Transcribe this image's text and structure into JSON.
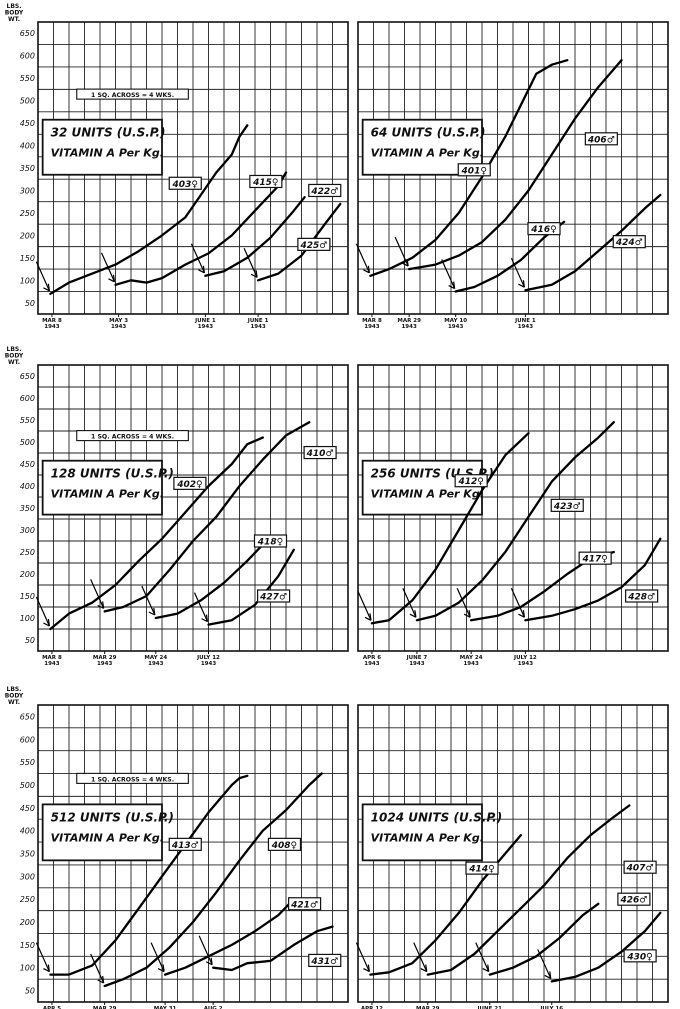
{
  "figure": {
    "y_axis_unit_lines": [
      "LBS.",
      "BODY",
      "WT."
    ],
    "scale_note": "1 SQ. ACROSS = 4 WKS."
  },
  "chart_data": [
    {
      "type": "line",
      "box_lines": [
        "32 UNITS (U.S.P.)",
        "VITAMIN A Per Kg."
      ],
      "ylim": [
        25,
        675
      ],
      "yticks": [
        50,
        100,
        150,
        200,
        250,
        300,
        350,
        400,
        450,
        500,
        550,
        600,
        650
      ],
      "xlim": [
        0,
        20
      ],
      "date_ticks": [
        {
          "x": 0.9,
          "label": [
            "MAR 8",
            "1943"
          ]
        },
        {
          "x": 5.2,
          "label": [
            "MAY 3",
            "1943"
          ]
        },
        {
          "x": 10.8,
          "label": [
            "JUNE 1",
            "1943"
          ]
        },
        {
          "x": 14.2,
          "label": [
            "JUNE 1",
            "1943"
          ]
        }
      ],
      "scale_note": "1 SQ. ACROSS = 4 WKS.",
      "series": [
        {
          "name": "403♀",
          "label_at": [
            9.5,
            316
          ],
          "x": [
            0.8,
            2,
            3.5,
            5,
            6.5,
            8,
            9.5,
            10.5,
            11.5,
            12.5,
            13,
            13.5
          ],
          "y": [
            70,
            95,
            115,
            135,
            165,
            200,
            240,
            290,
            340,
            380,
            420,
            445
          ]
        },
        {
          "name": "415♀",
          "label_at": [
            14.7,
            320
          ],
          "x": [
            5,
            6,
            7,
            8,
            9.5,
            11,
            12.5,
            14,
            15.5,
            16
          ],
          "y": [
            90,
            100,
            95,
            105,
            135,
            160,
            200,
            255,
            310,
            340
          ]
        },
        {
          "name": "422♂",
          "label_at": [
            18.5,
            300
          ],
          "x": [
            10.8,
            12,
            13.5,
            15,
            16.5,
            17.2
          ],
          "y": [
            110,
            120,
            150,
            195,
            255,
            285
          ]
        },
        {
          "name": "425♂",
          "label_at": [
            17.8,
            180
          ],
          "x": [
            14.2,
            15.5,
            17,
            18.5,
            19.5
          ],
          "y": [
            100,
            115,
            155,
            225,
            270
          ]
        }
      ]
    },
    {
      "type": "line",
      "box_lines": [
        "64 UNITS (U.S.P.)",
        "VITAMIN A Per Kg."
      ],
      "ylim": [
        25,
        675
      ],
      "yticks": [
        50,
        100,
        150,
        200,
        250,
        300,
        350,
        400,
        450,
        500,
        550,
        600,
        650
      ],
      "xlim": [
        0,
        20
      ],
      "date_ticks": [
        {
          "x": 0.9,
          "label": [
            "MAR 8",
            "1943"
          ]
        },
        {
          "x": 3.3,
          "label": [
            "MAR 29",
            "1943"
          ]
        },
        {
          "x": 6.3,
          "label": [
            "MAY 10",
            "1943"
          ]
        },
        {
          "x": 10.8,
          "label": [
            "JUNE 1",
            "1943"
          ]
        }
      ],
      "scale_note": "",
      "series": [
        {
          "name": "401♀",
          "label_at": [
            7.5,
            346
          ],
          "x": [
            0.8,
            2,
            3.5,
            5,
            6.5,
            8,
            9.5,
            10.5,
            11.5,
            12.5,
            13.5
          ],
          "y": [
            110,
            125,
            150,
            190,
            250,
            330,
            420,
            490,
            560,
            580,
            590
          ]
        },
        {
          "name": "406♂",
          "label_at": [
            15.7,
            415
          ],
          "x": [
            3.3,
            5,
            6.5,
            8,
            9.5,
            11,
            12.5,
            14,
            15.5,
            17
          ],
          "y": [
            125,
            135,
            155,
            185,
            235,
            300,
            380,
            460,
            530,
            590
          ]
        },
        {
          "name": "416♀",
          "label_at": [
            12,
            215
          ],
          "x": [
            6.3,
            7.5,
            9,
            10.5,
            12,
            13.3
          ],
          "y": [
            75,
            85,
            110,
            145,
            195,
            230
          ]
        },
        {
          "name": "424♂",
          "label_at": [
            17.5,
            186
          ],
          "x": [
            10.8,
            12.5,
            14,
            15.5,
            17,
            18.5,
            19.5
          ],
          "y": [
            78,
            90,
            120,
            165,
            210,
            260,
            290
          ]
        }
      ]
    },
    {
      "type": "line",
      "box_lines": [
        "128 UNITS (U.S.P.)",
        "VITAMIN A Per Kg."
      ],
      "ylim": [
        25,
        675
      ],
      "yticks": [
        50,
        100,
        150,
        200,
        250,
        300,
        350,
        400,
        450,
        500,
        550,
        600,
        650
      ],
      "xlim": [
        0,
        20
      ],
      "date_ticks": [
        {
          "x": 0.9,
          "label": [
            "MAR 8",
            "1943"
          ]
        },
        {
          "x": 4.3,
          "label": [
            "MAR 29",
            "1943"
          ]
        },
        {
          "x": 7.6,
          "label": [
            "MAY 24",
            "1943"
          ]
        },
        {
          "x": 11,
          "label": [
            "JULY 12",
            "1943"
          ]
        }
      ],
      "scale_note": "1 SQ. ACROSS = 4 WKS.",
      "series": [
        {
          "name": "410♂",
          "label_at": [
            18.2,
            476
          ],
          "x": [
            0.8,
            2,
            3.5,
            5,
            6.5,
            8,
            9.5,
            11,
            12.5,
            13.5,
            14.5
          ],
          "y": [
            75,
            110,
            135,
            175,
            230,
            280,
            340,
            400,
            450,
            495,
            510
          ]
        },
        {
          "name": "402♀",
          "label_at": [
            9.8,
            406
          ],
          "x": [
            4.3,
            5.5,
            7,
            8.5,
            10,
            11.5,
            13,
            14.5,
            16,
            17,
            17.5
          ],
          "y": [
            115,
            125,
            150,
            210,
            275,
            330,
            400,
            460,
            515,
            535,
            545
          ]
        },
        {
          "name": "418♀",
          "label_at": [
            15,
            275
          ],
          "x": [
            7.6,
            9,
            10.5,
            12,
            13.5,
            15
          ],
          "y": [
            100,
            110,
            140,
            180,
            230,
            285
          ]
        },
        {
          "name": "427♂",
          "label_at": [
            15.2,
            150
          ],
          "x": [
            11,
            12.5,
            14,
            15.5,
            16.5
          ],
          "y": [
            85,
            95,
            130,
            195,
            255
          ]
        }
      ]
    },
    {
      "type": "line",
      "box_lines": [
        "256 UNITS (U.S.P.)",
        "VITAMIN A Per Kg."
      ],
      "ylim": [
        25,
        675
      ],
      "yticks": [
        50,
        100,
        150,
        200,
        250,
        300,
        350,
        400,
        450,
        500,
        550,
        600,
        650
      ],
      "xlim": [
        0,
        20
      ],
      "date_ticks": [
        {
          "x": 0.9,
          "label": [
            "APR 6",
            "1943"
          ]
        },
        {
          "x": 3.8,
          "label": [
            "JUNE 7",
            "1943"
          ]
        },
        {
          "x": 7.3,
          "label": [
            "MAY 24",
            "1943"
          ]
        },
        {
          "x": 10.8,
          "label": [
            "JULY 12",
            "1943"
          ]
        }
      ],
      "scale_note": "",
      "series": [
        {
          "name": "412♀",
          "label_at": [
            7.3,
            412
          ],
          "x": [
            0.9,
            2,
            3.5,
            5,
            6.5,
            8,
            9.5,
            11
          ],
          "y": [
            88,
            95,
            140,
            210,
            300,
            390,
            470,
            520
          ]
        },
        {
          "name": "423♂",
          "label_at": [
            13.5,
            356
          ],
          "x": [
            3.8,
            5,
            6.5,
            8,
            9.5,
            11,
            12.5,
            14,
            15.5,
            16.5
          ],
          "y": [
            95,
            105,
            135,
            185,
            250,
            330,
            410,
            465,
            510,
            545
          ]
        },
        {
          "name": "417♀",
          "label_at": [
            15.3,
            236
          ],
          "x": [
            7.3,
            9,
            10.5,
            12,
            13.5,
            15,
            16.5
          ],
          "y": [
            95,
            105,
            125,
            160,
            200,
            235,
            250
          ]
        },
        {
          "name": "428♂",
          "label_at": [
            18.3,
            150
          ],
          "x": [
            10.8,
            12.5,
            14,
            15.5,
            17,
            18.5,
            19.5
          ],
          "y": [
            95,
            105,
            120,
            140,
            170,
            220,
            280
          ]
        }
      ]
    },
    {
      "type": "line",
      "box_lines": [
        "512 UNITS (U.S.P.)",
        "VITAMIN A Per Kg."
      ],
      "ylim": [
        25,
        675
      ],
      "yticks": [
        50,
        100,
        150,
        200,
        250,
        300,
        350,
        400,
        450,
        500,
        550,
        600,
        650
      ],
      "xlim": [
        0,
        20
      ],
      "date_ticks": [
        {
          "x": 0.9,
          "label": [
            "APR 5",
            "1943"
          ]
        },
        {
          "x": 4.3,
          "label": [
            "MAR 29",
            "1943"
          ]
        },
        {
          "x": 8.2,
          "label": [
            "MAY 31",
            "1943"
          ]
        },
        {
          "x": 11.3,
          "label": [
            "AUG 2",
            "1943"
          ]
        }
      ],
      "scale_note": "1 SQ. ACROSS = 4 WKS.",
      "series": [
        {
          "name": "413♂",
          "label_at": [
            9.5,
            370
          ],
          "x": [
            0.8,
            2,
            3.5,
            5,
            6.5,
            8,
            9.5,
            11,
            12.5,
            13,
            13.5
          ],
          "y": [
            85,
            85,
            105,
            160,
            230,
            300,
            370,
            440,
            500,
            515,
            520
          ]
        },
        {
          "name": "408♀",
          "label_at": [
            15.9,
            370
          ],
          "x": [
            4.3,
            5.5,
            7,
            8.5,
            10,
            11.5,
            13,
            14.5,
            16,
            17.5,
            18.3
          ],
          "y": [
            60,
            75,
            100,
            145,
            200,
            265,
            335,
            400,
            445,
            500,
            525
          ]
        },
        {
          "name": "421♂",
          "label_at": [
            17.2,
            240
          ],
          "x": [
            8.2,
            9.5,
            11,
            12.5,
            14,
            15.5,
            16.5
          ],
          "y": [
            85,
            100,
            125,
            150,
            180,
            215,
            250
          ]
        },
        {
          "name": "431♂",
          "label_at": [
            18.5,
            116
          ],
          "x": [
            11.3,
            12.5,
            13.5,
            15,
            16.5,
            18,
            19
          ],
          "y": [
            100,
            95,
            110,
            115,
            150,
            180,
            190
          ]
        }
      ]
    },
    {
      "type": "line",
      "box_lines": [
        "1024 UNITS (U.S.P.)",
        "VITAMIN A Per Kg."
      ],
      "ylim": [
        25,
        675
      ],
      "yticks": [
        50,
        100,
        150,
        200,
        250,
        300,
        350,
        400,
        450,
        500,
        550,
        600,
        650
      ],
      "xlim": [
        0,
        20
      ],
      "date_ticks": [
        {
          "x": 0.9,
          "label": [
            "APR 12",
            "1943"
          ]
        },
        {
          "x": 4.5,
          "label": [
            "MAR 29",
            "1943"
          ]
        },
        {
          "x": 8.5,
          "label": [
            "JUNE 21",
            "1943"
          ]
        },
        {
          "x": 12.5,
          "label": [
            "JULY 16",
            "1943"
          ]
        }
      ],
      "scale_note": "",
      "series": [
        {
          "name": "414♀",
          "label_at": [
            8,
            318
          ],
          "x": [
            0.8,
            2,
            3.5,
            5,
            6.5,
            8,
            9.5,
            10.5
          ],
          "y": [
            85,
            90,
            110,
            160,
            220,
            290,
            350,
            390
          ]
        },
        {
          "name": "407♂",
          "label_at": [
            18.2,
            320
          ],
          "x": [
            4.5,
            6,
            7.5,
            9,
            10.5,
            12,
            13.5,
            15,
            16.5,
            17.5
          ],
          "y": [
            85,
            95,
            130,
            180,
            230,
            280,
            340,
            390,
            430,
            455
          ]
        },
        {
          "name": "426♂",
          "label_at": [
            17.8,
            250
          ],
          "x": [
            8.5,
            10,
            11.5,
            13,
            14.5,
            15.5
          ],
          "y": [
            85,
            100,
            125,
            165,
            215,
            240
          ]
        },
        {
          "name": "430♀",
          "label_at": [
            18.2,
            126
          ],
          "x": [
            12.5,
            14,
            15.5,
            17,
            18.5,
            19.5
          ],
          "y": [
            70,
            80,
            100,
            135,
            180,
            220
          ]
        }
      ]
    }
  ]
}
